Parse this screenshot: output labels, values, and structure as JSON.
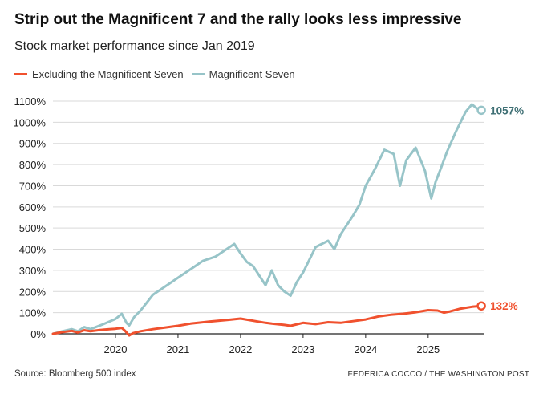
{
  "title": "Strip out the Magnificent 7 and the rally looks less impressive",
  "subtitle": "Stock market performance since Jan 2019",
  "source": "Source: Bloomberg 500 index",
  "credit": "FEDERICA COCCO / THE WASHINGTON POST",
  "colors": {
    "excluding": "#f0512e",
    "mag7": "#97c4c8",
    "mag7_label": "#3d6e73",
    "grid": "#d9d9d9",
    "axis": "#222222"
  },
  "chart_data": {
    "type": "line",
    "x_unit": "year",
    "xlim": [
      2019.0,
      2025.9
    ],
    "ylim": [
      0,
      1100
    ],
    "yticks": [
      0,
      100,
      200,
      300,
      400,
      500,
      600,
      700,
      800,
      900,
      1000,
      1100
    ],
    "ytick_labels": [
      "0%",
      "100%",
      "200%",
      "300%",
      "400%",
      "500%",
      "600%",
      "700%",
      "800%",
      "900%",
      "1000%",
      "1100%"
    ],
    "xticks": [
      2020,
      2021,
      2022,
      2023,
      2024,
      2025
    ],
    "xtick_labels": [
      "2020",
      "2021",
      "2022",
      "2023",
      "2024",
      "2025"
    ],
    "legend_position": "top-left",
    "grid": true,
    "series": [
      {
        "name": "Excluding the Magnificent Seven",
        "color": "#f0512e",
        "end_label": "132%",
        "x": [
          2019.0,
          2019.15,
          2019.3,
          2019.4,
          2019.5,
          2019.6,
          2019.75,
          2019.9,
          2020.0,
          2020.1,
          2020.15,
          2020.22,
          2020.28,
          2020.4,
          2020.6,
          2020.8,
          2021.0,
          2021.2,
          2021.5,
          2021.8,
          2022.0,
          2022.2,
          2022.4,
          2022.5,
          2022.7,
          2022.8,
          2023.0,
          2023.2,
          2023.4,
          2023.6,
          2023.8,
          2024.0,
          2024.2,
          2024.4,
          2024.6,
          2024.8,
          2025.0,
          2025.15,
          2025.25,
          2025.35,
          2025.5,
          2025.7,
          2025.85
        ],
        "values": [
          0,
          8,
          14,
          6,
          17,
          12,
          18,
          22,
          24,
          28,
          15,
          -8,
          3,
          12,
          22,
          30,
          38,
          48,
          58,
          66,
          72,
          62,
          52,
          48,
          42,
          38,
          52,
          46,
          55,
          52,
          60,
          68,
          82,
          90,
          95,
          102,
          112,
          110,
          100,
          106,
          118,
          128,
          132
        ]
      },
      {
        "name": "Magnificent Seven",
        "color": "#97c4c8",
        "end_label": "1057%",
        "x": [
          2019.0,
          2019.15,
          2019.3,
          2019.4,
          2019.5,
          2019.6,
          2019.8,
          2020.0,
          2020.1,
          2020.18,
          2020.22,
          2020.3,
          2020.4,
          2020.6,
          2020.8,
          2021.0,
          2021.2,
          2021.4,
          2021.6,
          2021.8,
          2021.9,
          2022.0,
          2022.1,
          2022.2,
          2022.3,
          2022.4,
          2022.5,
          2022.6,
          2022.7,
          2022.8,
          2022.9,
          2023.0,
          2023.1,
          2023.2,
          2023.4,
          2023.5,
          2023.6,
          2023.8,
          2023.9,
          2024.0,
          2024.15,
          2024.3,
          2024.45,
          2024.55,
          2024.65,
          2024.8,
          2024.95,
          2025.05,
          2025.12,
          2025.2,
          2025.3,
          2025.45,
          2025.6,
          2025.7,
          2025.78,
          2025.85
        ],
        "values": [
          0,
          12,
          22,
          12,
          32,
          22,
          45,
          70,
          95,
          50,
          40,
          80,
          110,
          185,
          225,
          265,
          305,
          345,
          365,
          405,
          425,
          380,
          340,
          320,
          275,
          230,
          300,
          230,
          200,
          180,
          245,
          290,
          350,
          410,
          440,
          400,
          470,
          560,
          610,
          700,
          780,
          870,
          850,
          700,
          820,
          880,
          770,
          640,
          720,
          780,
          860,
          960,
          1050,
          1085,
          1065,
          1057
        ]
      }
    ]
  }
}
